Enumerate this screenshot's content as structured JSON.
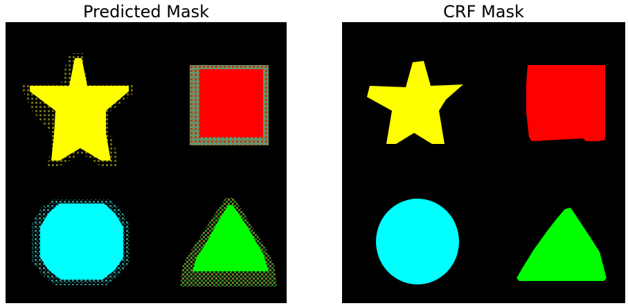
{
  "panels": {
    "left": {
      "title": "Predicted Mask"
    },
    "right": {
      "title": "CRF Mask"
    }
  },
  "colors": {
    "background": "#000000",
    "star": "#ffff00",
    "square": "#ff0000",
    "circle": "#00ffff",
    "triangle": "#00ff00",
    "noise": "#3aa0a0"
  }
}
